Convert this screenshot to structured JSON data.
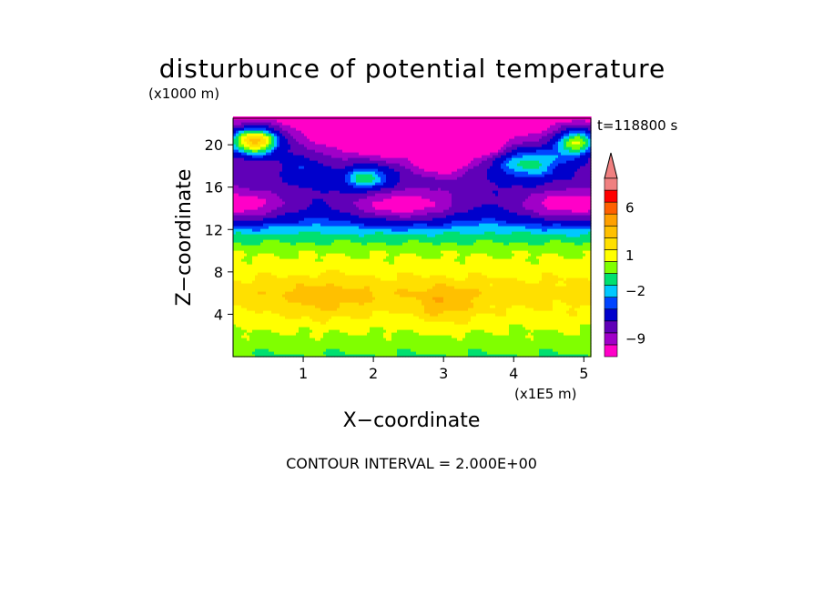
{
  "chart_data": {
    "type": "heatmap",
    "title": "disturbunce of potential temperature",
    "y_unit": "(x1000 m)",
    "x_unit": "(x1E5 m)",
    "xlabel": "X−coordinate",
    "ylabel": "Z−coordinate",
    "time_label": "t=118800 s",
    "footer": "CONTOUR INTERVAL = 2.000E+00",
    "xlim": [
      0,
      5.1
    ],
    "ylim": [
      0,
      22.5
    ],
    "x_ticks": [
      1,
      2,
      3,
      4,
      5
    ],
    "x_tick_labels": [
      "1",
      "2",
      "3",
      "4",
      "5"
    ],
    "y_ticks": [
      4,
      8,
      12,
      16,
      20
    ],
    "y_tick_labels": [
      "4",
      "8",
      "12",
      "16",
      "20"
    ],
    "x": [
      0.1,
      0.3,
      0.5,
      0.7,
      0.9,
      1.1,
      1.3,
      1.5,
      1.7,
      1.9,
      2.1,
      2.3,
      2.5,
      2.7,
      2.9,
      3.1,
      3.3,
      3.5,
      3.7,
      3.9,
      4.1,
      4.3,
      4.5,
      4.7,
      4.9,
      5.05
    ],
    "y": [
      0.5,
      1.5,
      2.5,
      3.5,
      4.5,
      5.5,
      6.5,
      7.5,
      8.5,
      9.5,
      10.5,
      11.5,
      12.5,
      13.5,
      14.5,
      15.5,
      16.5,
      17.5,
      18.5,
      19.5,
      20.5,
      21.5,
      22.25
    ],
    "levels": [
      -12,
      -9,
      -7,
      -5,
      -3,
      -2,
      -1,
      0,
      1,
      2,
      3,
      4,
      6,
      8,
      10
    ],
    "level_colors": [
      "#ff00c8",
      "#a000c8",
      "#6000b8",
      "#0000cc",
      "#0044ff",
      "#00c8ff",
      "#00e070",
      "#80ff00",
      "#ffff00",
      "#ffe000",
      "#ffc000",
      "#ffa000",
      "#ff6000",
      "#ff0000",
      "#f08080"
    ],
    "colorbar_labels": [
      {
        "text": "6",
        "value": 6
      },
      {
        "text": "1",
        "value": 1
      },
      {
        "text": "−2",
        "value": -2
      },
      {
        "text": "−9",
        "value": -9
      }
    ],
    "grid": false,
    "legend": "colorbar-right"
  }
}
